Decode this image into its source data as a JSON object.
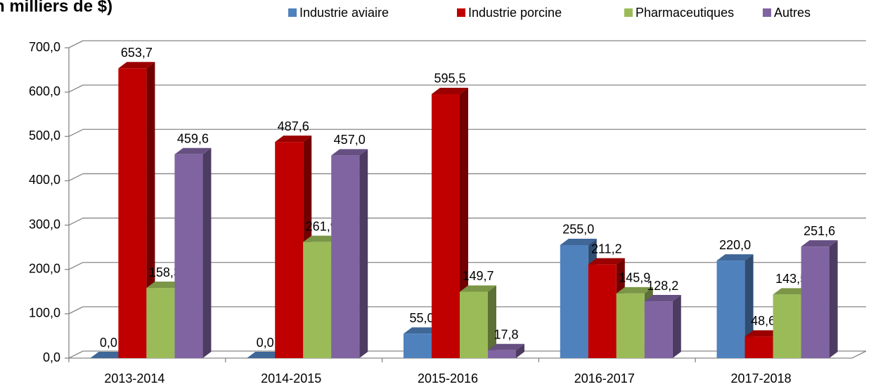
{
  "chart_data": {
    "type": "bar3d",
    "title": "n milliers de $)",
    "categories": [
      "2013-2014",
      "2014-2015",
      "2015-2016",
      "2016-2017",
      "2017-2018"
    ],
    "series": [
      {
        "name": "Industrie aviaire",
        "color": "#4f81bd",
        "values": [
          0.0,
          0.0,
          55.0,
          255.0,
          220.0
        ],
        "value_labels": [
          "0,0",
          "0,0",
          "55,0",
          "255,0",
          "220,0"
        ]
      },
      {
        "name": "Industrie porcine",
        "color": "#c00000",
        "values": [
          653.7,
          487.6,
          595.5,
          211.2,
          48.6
        ],
        "value_labels": [
          "653,7",
          "487,6",
          "595,5",
          "211,2",
          "48,6"
        ]
      },
      {
        "name": "Pharmaceutiques",
        "color": "#9bbb59",
        "values": [
          158.3,
          261.9,
          149.7,
          145.9,
          143.5
        ],
        "value_labels": [
          "158,3",
          "261,9",
          "149,7",
          "145,9",
          "143,5"
        ]
      },
      {
        "name": "Autres",
        "color": "#8064a2",
        "values": [
          459.6,
          457.0,
          17.8,
          128.2,
          251.6
        ],
        "value_labels": [
          "459,6",
          "457,0",
          "17,8",
          "128,2",
          "251,6"
        ]
      }
    ],
    "ylim": [
      0,
      700
    ],
    "yticks": [
      {
        "value": 0,
        "label": "0,0"
      },
      {
        "value": 100,
        "label": "100,0"
      },
      {
        "value": 200,
        "label": "200,0"
      },
      {
        "value": 300,
        "label": "300,0"
      },
      {
        "value": 400,
        "label": "400,0"
      },
      {
        "value": 500,
        "label": "500,0"
      },
      {
        "value": 600,
        "label": "600,0"
      },
      {
        "value": 700,
        "label": "700,0"
      }
    ],
    "grid": true
  }
}
